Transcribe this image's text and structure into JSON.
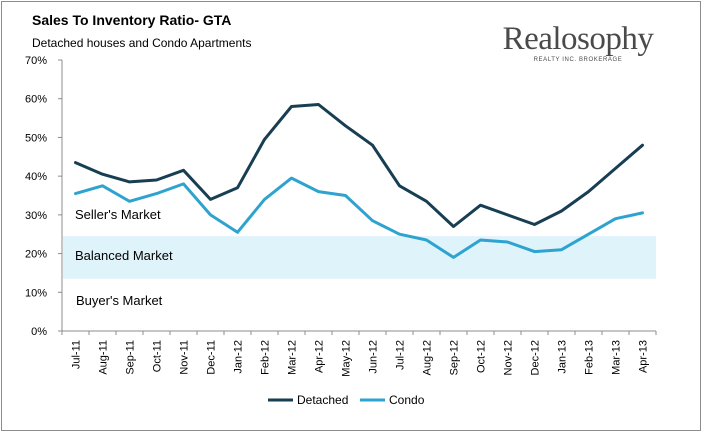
{
  "header": {
    "title": "Sales To Inventory Ratio- GTA",
    "subtitle": "Detached houses and Condo Apartments"
  },
  "logo": {
    "name": "Realosophy",
    "tagline": "REALTY INC. BROKERAGE"
  },
  "colors": {
    "detached": "#173e52",
    "condo": "#2ea3cf",
    "balanced_band": "#dff3fb",
    "axis": "#8c8c8c"
  },
  "chart_data": {
    "type": "line",
    "title": "Sales To Inventory Ratio- GTA",
    "subtitle": "Detached houses and Condo Apartments",
    "xlabel": "",
    "ylabel": "",
    "ylim": [
      0,
      70
    ],
    "y_ticks": [
      0,
      10,
      20,
      30,
      40,
      50,
      60,
      70
    ],
    "y_tick_labels": [
      "0%",
      "10%",
      "20%",
      "30%",
      "40%",
      "50%",
      "60%",
      "70%"
    ],
    "grid": false,
    "legend_position": "bottom",
    "categories": [
      "Jul-11",
      "Aug-11",
      "Sep-11",
      "Oct-11",
      "Nov-11",
      "Dec-11",
      "Jan-12",
      "Feb-12",
      "Mar-12",
      "Apr-12",
      "May-12",
      "Jun-12",
      "Jul-12",
      "Aug-12",
      "Sep-12",
      "Oct-12",
      "Nov-12",
      "Dec-12",
      "Jan-13",
      "Feb-13",
      "Mar-13",
      "Apr-13"
    ],
    "series": [
      {
        "name": "Detached",
        "values": [
          43.5,
          40.5,
          38.5,
          39,
          41.5,
          34,
          37,
          49.5,
          58,
          58.5,
          53,
          48,
          37.5,
          33.5,
          27,
          32.5,
          30,
          27.5,
          31,
          36,
          42,
          48
        ]
      },
      {
        "name": "Condo",
        "values": [
          35.5,
          37.5,
          33.5,
          35.5,
          38,
          30,
          25.5,
          34,
          39.5,
          36,
          35,
          28.5,
          25,
          23.5,
          19,
          23.5,
          23,
          20.5,
          21,
          25,
          29,
          30.5
        ]
      }
    ],
    "bands": [
      {
        "label": "Seller's Market"
      },
      {
        "label": "Balanced Market",
        "from": 13.5,
        "to": 24.5
      },
      {
        "label": "Buyer's Market"
      }
    ]
  }
}
